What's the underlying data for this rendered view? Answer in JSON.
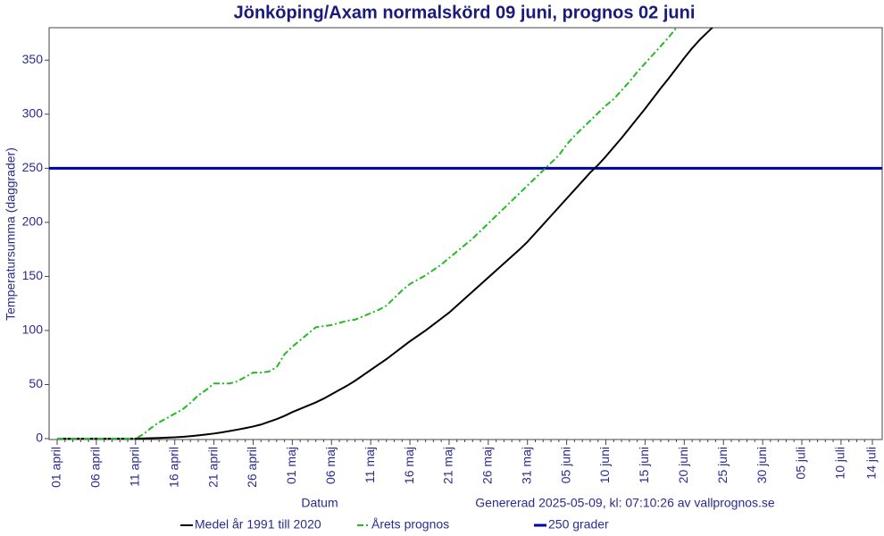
{
  "chart_data": {
    "type": "line",
    "title": "Jönköping/Axam normalskörd 09 juni, prognos 02 juni",
    "x_label": "Datum",
    "y_label": "Temperatursumma (daggrader)",
    "annotation": "Genererad 2025-05-09, kl: 07:10:26 av vallprognos.se",
    "categories": [
      "01 april",
      null,
      null,
      null,
      null,
      "06 april",
      null,
      null,
      null,
      null,
      "11 april",
      null,
      null,
      null,
      null,
      "16 april",
      null,
      null,
      null,
      null,
      "21 april",
      null,
      null,
      null,
      null,
      "26 april",
      null,
      null,
      null,
      null,
      "01 maj",
      null,
      null,
      null,
      null,
      "06 maj",
      null,
      null,
      null,
      null,
      "11 maj",
      null,
      null,
      null,
      null,
      "16 maj",
      null,
      null,
      null,
      null,
      "21 maj",
      null,
      null,
      null,
      null,
      "26 maj",
      null,
      null,
      null,
      null,
      "31 maj",
      null,
      null,
      null,
      null,
      "05 juni",
      null,
      null,
      null,
      null,
      "10 juni",
      null,
      null,
      null,
      null,
      "15 juni",
      null,
      null,
      null,
      null,
      "20 juni",
      null,
      null,
      null,
      null,
      "25 juni",
      null,
      null,
      null,
      null,
      "30 juni",
      null,
      null,
      null,
      null,
      "05 juli",
      null,
      null,
      null,
      null,
      "10 juli",
      null,
      null,
      null,
      "14 juli"
    ],
    "series": [
      {
        "name": "Medel år 1991 till 2020",
        "color": "#000000",
        "line_style": "solid",
        "values": [
          0,
          0,
          0,
          0,
          0,
          0,
          0,
          0,
          0,
          0,
          0,
          0.2,
          0.4,
          0.6,
          0.9,
          1.2,
          1.7,
          2.3,
          3,
          3.8,
          4.7,
          5.8,
          7,
          8.3,
          9.7,
          11.2,
          13,
          15.5,
          18,
          21,
          24.5,
          27.5,
          30.5,
          33.5,
          37,
          41,
          45,
          49,
          53.5,
          58.5,
          63.5,
          68.5,
          73.5,
          79,
          84.5,
          90,
          95,
          100,
          105.5,
          111,
          116.5,
          123,
          129.5,
          136,
          142.5,
          149,
          155.5,
          162,
          168.5,
          175,
          182,
          190,
          198,
          206,
          214,
          222,
          230,
          238,
          246,
          253,
          261,
          269.5,
          278,
          287,
          296,
          305,
          314.5,
          324,
          333,
          342.5,
          352,
          361,
          369,
          376,
          383,
          null,
          null,
          null,
          null,
          null,
          null,
          null,
          null,
          null,
          null,
          null,
          null,
          null,
          null,
          null,
          null,
          null,
          null,
          null,
          null
        ]
      },
      {
        "name": "Årets prognos",
        "color": "#22bb22",
        "line_style": "dashdot",
        "values": [
          0,
          0,
          0,
          0,
          0,
          0,
          0,
          0,
          0,
          0,
          0,
          4,
          10,
          15,
          19,
          23,
          27,
          33,
          40,
          45,
          51,
          51,
          51,
          53,
          57,
          61,
          61,
          62,
          66,
          78,
          85,
          91,
          97,
          103,
          104,
          105,
          107,
          109,
          110,
          113,
          116,
          119,
          123,
          130,
          137,
          143,
          147,
          151,
          156,
          161,
          167,
          173,
          179,
          185,
          192,
          199,
          206,
          213,
          220,
          227,
          234,
          241,
          248,
          255,
          262,
          272,
          280,
          287,
          294,
          301,
          308,
          314,
          322,
          330,
          339,
          347,
          355,
          363,
          371,
          380,
          null,
          null,
          null,
          null,
          null,
          null,
          null,
          null,
          null,
          null,
          null,
          null,
          null,
          null,
          null,
          null,
          null,
          null,
          null,
          null,
          null,
          null,
          null,
          null,
          null
        ]
      }
    ],
    "threshold": {
      "name": "250 grader",
      "value": 250,
      "color": "#0000aa"
    },
    "ylim": [
      0,
      380
    ],
    "yticks": [
      0,
      50,
      100,
      150,
      200,
      250,
      300,
      350
    ]
  }
}
